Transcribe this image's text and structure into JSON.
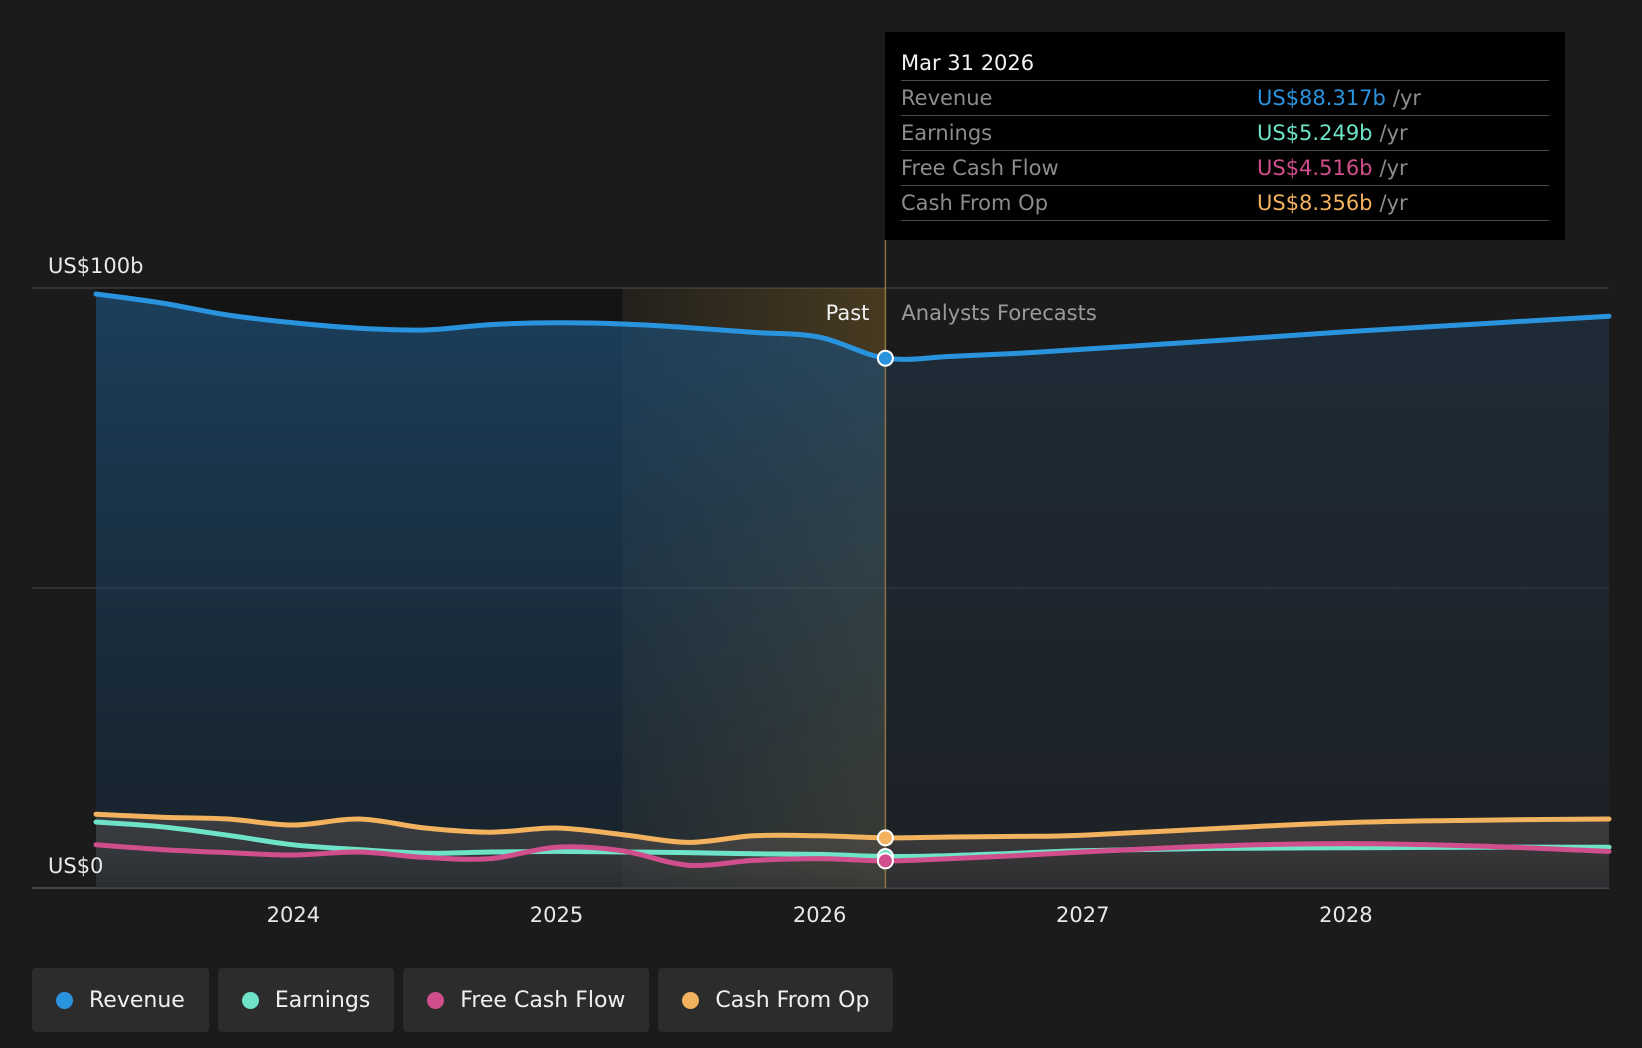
{
  "chart_data": {
    "type": "area",
    "x_ticks": [
      "2024",
      "2025",
      "2026",
      "2027",
      "2028"
    ],
    "y_ticks": [
      {
        "value": 0,
        "label": "US$0"
      },
      {
        "value": 100,
        "label": "US$100b"
      }
    ],
    "ylim": [
      0,
      100
    ],
    "xlim": [
      2023.25,
      2029.0
    ],
    "past_label": "Past",
    "forecast_label": "Analysts Forecasts",
    "divider_x": 2026.25,
    "highlight_start_x": 2025.25,
    "series": [
      {
        "name": "Revenue",
        "color": "#2a93de",
        "points": [
          [
            2023.25,
            99.0
          ],
          [
            2023.5,
            97.5
          ],
          [
            2023.75,
            95.5
          ],
          [
            2024.0,
            94.2
          ],
          [
            2024.25,
            93.3
          ],
          [
            2024.5,
            93.0
          ],
          [
            2024.75,
            93.9
          ],
          [
            2025.0,
            94.2
          ],
          [
            2025.25,
            94.0
          ],
          [
            2025.5,
            93.4
          ],
          [
            2025.75,
            92.6
          ],
          [
            2026.0,
            91.8
          ],
          [
            2026.25,
            88.3
          ],
          [
            2026.5,
            88.6
          ],
          [
            2026.75,
            89.1
          ],
          [
            2027.0,
            89.8
          ],
          [
            2027.5,
            91.2
          ],
          [
            2028.0,
            92.7
          ],
          [
            2028.5,
            94.0
          ],
          [
            2029.0,
            95.3
          ]
        ]
      },
      {
        "name": "Earnings",
        "color": "#6fe3c8",
        "points": [
          [
            2023.25,
            11.0
          ],
          [
            2023.5,
            10.2
          ],
          [
            2023.75,
            8.8
          ],
          [
            2024.0,
            7.2
          ],
          [
            2024.25,
            6.4
          ],
          [
            2024.5,
            5.8
          ],
          [
            2024.75,
            6.0
          ],
          [
            2025.0,
            6.1
          ],
          [
            2025.25,
            6.0
          ],
          [
            2025.5,
            5.9
          ],
          [
            2025.75,
            5.7
          ],
          [
            2026.0,
            5.6
          ],
          [
            2026.25,
            5.249
          ],
          [
            2026.5,
            5.4
          ],
          [
            2026.75,
            5.8
          ],
          [
            2027.0,
            6.2
          ],
          [
            2027.5,
            6.6
          ],
          [
            2028.0,
            6.7
          ],
          [
            2028.5,
            6.8
          ],
          [
            2029.0,
            6.8
          ]
        ]
      },
      {
        "name": "Free Cash Flow",
        "color": "#d04e8b",
        "points": [
          [
            2023.25,
            7.2
          ],
          [
            2023.5,
            6.4
          ],
          [
            2023.75,
            5.9
          ],
          [
            2024.0,
            5.5
          ],
          [
            2024.25,
            6.0
          ],
          [
            2024.5,
            5.1
          ],
          [
            2024.75,
            4.9
          ],
          [
            2025.0,
            6.8
          ],
          [
            2025.25,
            6.2
          ],
          [
            2025.5,
            3.8
          ],
          [
            2025.75,
            4.6
          ],
          [
            2026.0,
            4.9
          ],
          [
            2026.25,
            4.516
          ],
          [
            2026.5,
            4.9
          ],
          [
            2026.75,
            5.4
          ],
          [
            2027.0,
            6.0
          ],
          [
            2027.5,
            7.0
          ],
          [
            2028.0,
            7.4
          ],
          [
            2028.5,
            7.0
          ],
          [
            2029.0,
            6.1
          ]
        ]
      },
      {
        "name": "Cash From Op",
        "color": "#f2b25e",
        "points": [
          [
            2023.25,
            12.3
          ],
          [
            2023.5,
            11.8
          ],
          [
            2023.75,
            11.5
          ],
          [
            2024.0,
            10.5
          ],
          [
            2024.25,
            11.5
          ],
          [
            2024.5,
            10.0
          ],
          [
            2024.75,
            9.3
          ],
          [
            2025.0,
            10.0
          ],
          [
            2025.25,
            8.9
          ],
          [
            2025.5,
            7.6
          ],
          [
            2025.75,
            8.7
          ],
          [
            2026.0,
            8.7
          ],
          [
            2026.25,
            8.356
          ],
          [
            2026.5,
            8.5
          ],
          [
            2026.75,
            8.6
          ],
          [
            2027.0,
            8.8
          ],
          [
            2027.5,
            9.9
          ],
          [
            2028.0,
            10.9
          ],
          [
            2028.5,
            11.3
          ],
          [
            2029.0,
            11.5
          ]
        ]
      }
    ]
  },
  "tooltip": {
    "date": "Mar 31 2026",
    "unit": "/yr",
    "rows": [
      {
        "label": "Revenue",
        "value": "US$88.317b",
        "color": "#2a93de"
      },
      {
        "label": "Earnings",
        "value": "US$5.249b",
        "color": "#6fe3c8"
      },
      {
        "label": "Free Cash Flow",
        "value": "US$4.516b",
        "color": "#d04e8b"
      },
      {
        "label": "Cash From Op",
        "value": "US$8.356b",
        "color": "#f2b25e"
      }
    ]
  },
  "legend": {
    "items": [
      {
        "label": "Revenue",
        "color": "#2a93de"
      },
      {
        "label": "Earnings",
        "color": "#6fe3c8"
      },
      {
        "label": "Free Cash Flow",
        "color": "#d04e8b"
      },
      {
        "label": "Cash From Op",
        "color": "#f2b25e"
      }
    ]
  }
}
